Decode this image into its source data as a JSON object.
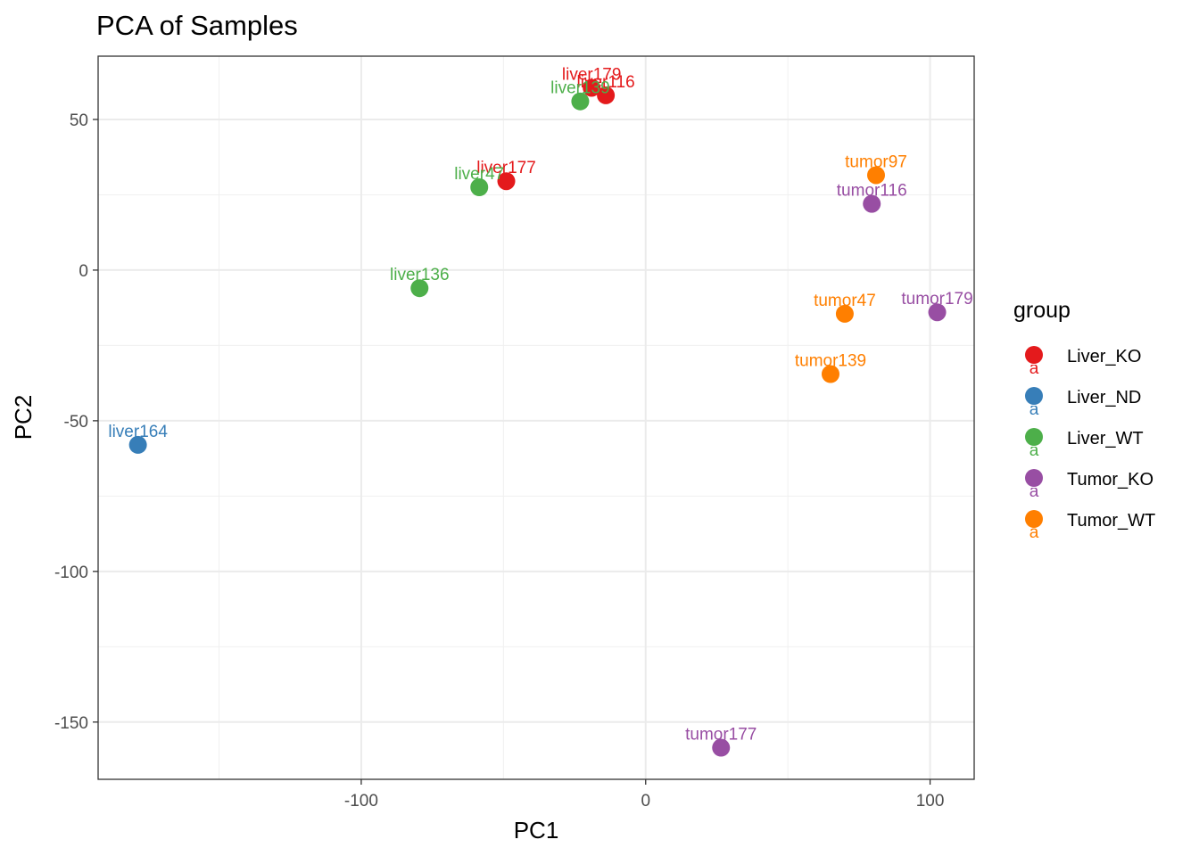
{
  "chart_data": {
    "type": "scatter",
    "title": "PCA of Samples",
    "xlabel": "PC1",
    "ylabel": "PC2",
    "xlim": [
      -192.5,
      115.5
    ],
    "ylim": [
      -169,
      71
    ],
    "x_ticks": [
      -100,
      0,
      100
    ],
    "y_ticks": [
      50,
      0,
      -50,
      -100,
      -150
    ],
    "grid": true,
    "legend": {
      "title": "group",
      "placement": "right",
      "key_text": "a",
      "entries": [
        {
          "name": "Liver_KO",
          "color": "#E41A1C"
        },
        {
          "name": "Liver_ND",
          "color": "#377EB8"
        },
        {
          "name": "Liver_WT",
          "color": "#4DAF4A"
        },
        {
          "name": "Tumor_KO",
          "color": "#984EA3"
        },
        {
          "name": "Tumor_WT",
          "color": "#FF7F00"
        }
      ]
    },
    "points": [
      {
        "label": "liver179",
        "group": "Liver_KO",
        "x": -19,
        "y": 60.5
      },
      {
        "label": "liver116",
        "group": "Liver_KO",
        "x": -14,
        "y": 58
      },
      {
        "label": "liver139",
        "group": "Liver_WT",
        "x": -23,
        "y": 56
      },
      {
        "label": "liver177",
        "group": "Liver_KO",
        "x": -49,
        "y": 29.5
      },
      {
        "label": "liver47",
        "group": "Liver_WT",
        "x": -58.5,
        "y": 27.5
      },
      {
        "label": "liver136",
        "group": "Liver_WT",
        "x": -79.5,
        "y": -6
      },
      {
        "label": "liver164",
        "group": "Liver_ND",
        "x": -178.5,
        "y": -58
      },
      {
        "label": "tumor97",
        "group": "Tumor_WT",
        "x": 81,
        "y": 31.5
      },
      {
        "label": "tumor116",
        "group": "Tumor_KO",
        "x": 79.5,
        "y": 22
      },
      {
        "label": "tumor47",
        "group": "Tumor_WT",
        "x": 70,
        "y": -14.5
      },
      {
        "label": "tumor179",
        "group": "Tumor_KO",
        "x": 102.5,
        "y": -14
      },
      {
        "label": "tumor139",
        "group": "Tumor_WT",
        "x": 65,
        "y": -34.5
      },
      {
        "label": "tumor177",
        "group": "Tumor_KO",
        "x": 26.5,
        "y": -158.5
      }
    ]
  }
}
